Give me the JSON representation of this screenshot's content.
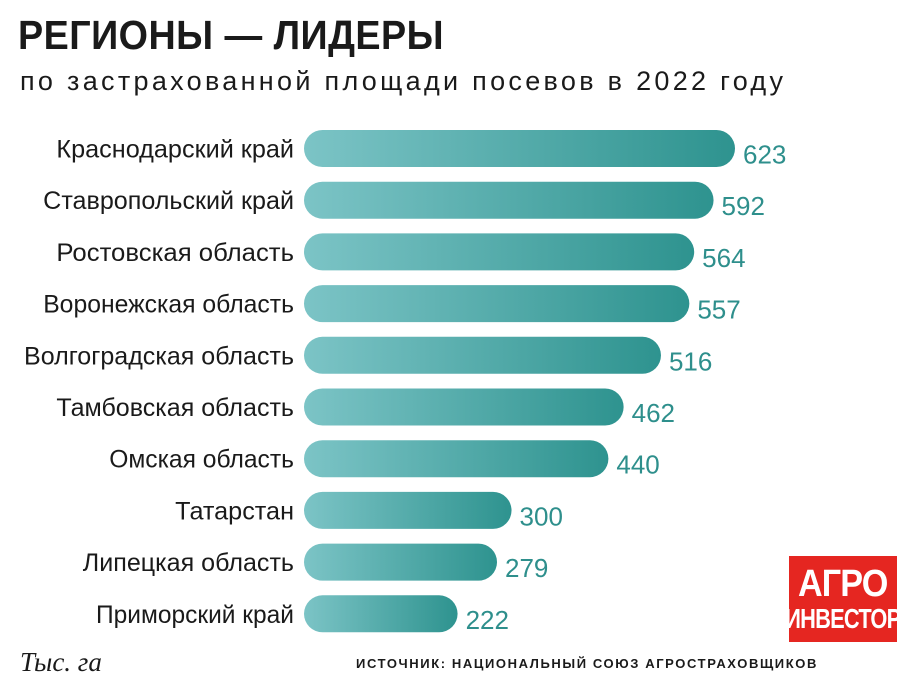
{
  "header": {
    "title": "РЕГИОНЫ — ЛИДЕРЫ",
    "subtitle": "по застрахованной площади посевов в 2022 году"
  },
  "footer": {
    "unit": "Тыс. га",
    "source": "ИСТОЧНИК: НАЦИОНАЛЬНЫЙ СОЮЗ АГРОСТРАХОВЩИКОВ"
  },
  "logo": {
    "line1": "АГРО",
    "line2": "ИНВЕСТОР"
  },
  "colors": {
    "bar_start": "#7cc4c6",
    "bar_end": "#2e938f",
    "value_label": "#2e8f8c",
    "logo_bg": "#e52621"
  },
  "chart_data": {
    "type": "bar",
    "orientation": "horizontal",
    "categories": [
      "Краснодарский край",
      "Ставропольский край",
      "Ростовская область",
      "Воронежская область",
      "Волгоградская область",
      "Тамбовская область",
      "Омская область",
      "Татарстан",
      "Липецкая область",
      "Приморский край"
    ],
    "values": [
      623,
      592,
      564,
      557,
      516,
      462,
      440,
      300,
      279,
      222
    ],
    "xlim": [
      0,
      623
    ],
    "grid": false,
    "legend": "none"
  }
}
